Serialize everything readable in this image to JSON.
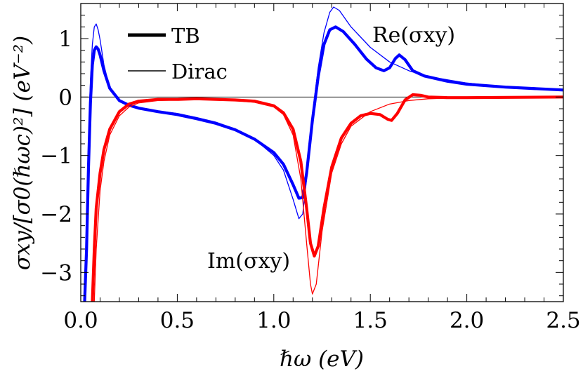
{
  "chart_data": {
    "type": "line",
    "xlabel": "ℏω (eV)",
    "ylabel": "σxy/[σ0(ℏωc)²] (eV⁻²)",
    "xlim": [
      0,
      2.5
    ],
    "ylim": [
      -3.5,
      1.6
    ],
    "x_ticks": [
      0.0,
      0.5,
      1.0,
      1.5,
      2.0,
      2.5
    ],
    "x_tick_labels": [
      "0.0",
      "0.5",
      "1.0",
      "1.5",
      "2.0",
      "2.5"
    ],
    "y_ticks": [
      -3,
      -2,
      -1,
      0,
      1
    ],
    "y_tick_labels": [
      "−3",
      "−2",
      "−1",
      "0",
      "1"
    ],
    "grid": false,
    "zero_line": true,
    "legend": {
      "placement": "top-left",
      "entries": [
        {
          "label": "TB",
          "style": "thick"
        },
        {
          "label": "Dirac",
          "style": "thin"
        }
      ]
    },
    "annotations": [
      {
        "text": "Re(σxy)",
        "x": 1.68,
        "y": 1.22
      },
      {
        "text": "Im(σxy)",
        "x": 1.04,
        "y": -3.05
      }
    ],
    "colors": {
      "re": "#0000ff",
      "im": "#ff0000"
    },
    "series": [
      {
        "component": "Re",
        "model": "TB",
        "color": "#0000ff",
        "style": "thick",
        "points": [
          [
            0.02,
            -3.5
          ],
          [
            0.03,
            -2.6
          ],
          [
            0.04,
            -1.2
          ],
          [
            0.05,
            -0.1
          ],
          [
            0.06,
            0.55
          ],
          [
            0.07,
            0.8
          ],
          [
            0.08,
            0.86
          ],
          [
            0.09,
            0.82
          ],
          [
            0.1,
            0.72
          ],
          [
            0.12,
            0.45
          ],
          [
            0.15,
            0.15
          ],
          [
            0.2,
            -0.06
          ],
          [
            0.25,
            -0.14
          ],
          [
            0.3,
            -0.19
          ],
          [
            0.4,
            -0.25
          ],
          [
            0.5,
            -0.3
          ],
          [
            0.6,
            -0.37
          ],
          [
            0.7,
            -0.45
          ],
          [
            0.8,
            -0.56
          ],
          [
            0.9,
            -0.72
          ],
          [
            1.0,
            -0.95
          ],
          [
            1.05,
            -1.15
          ],
          [
            1.1,
            -1.5
          ],
          [
            1.13,
            -1.73
          ],
          [
            1.15,
            -1.72
          ],
          [
            1.17,
            -1.3
          ],
          [
            1.2,
            -0.4
          ],
          [
            1.23,
            0.35
          ],
          [
            1.26,
            0.9
          ],
          [
            1.29,
            1.15
          ],
          [
            1.32,
            1.2
          ],
          [
            1.36,
            1.12
          ],
          [
            1.42,
            0.9
          ],
          [
            1.48,
            0.65
          ],
          [
            1.53,
            0.5
          ],
          [
            1.57,
            0.45
          ],
          [
            1.6,
            0.5
          ],
          [
            1.63,
            0.66
          ],
          [
            1.65,
            0.72
          ],
          [
            1.68,
            0.64
          ],
          [
            1.72,
            0.45
          ],
          [
            1.78,
            0.36
          ],
          [
            1.9,
            0.27
          ],
          [
            2.0,
            0.22
          ],
          [
            2.2,
            0.17
          ],
          [
            2.5,
            0.12
          ]
        ]
      },
      {
        "component": "Re",
        "model": "Dirac",
        "color": "#0000ff",
        "style": "thin",
        "points": [
          [
            0.02,
            -3.5
          ],
          [
            0.03,
            -2.2
          ],
          [
            0.04,
            -0.8
          ],
          [
            0.05,
            0.3
          ],
          [
            0.06,
            0.9
          ],
          [
            0.07,
            1.2
          ],
          [
            0.08,
            1.25
          ],
          [
            0.09,
            1.15
          ],
          [
            0.1,
            0.98
          ],
          [
            0.12,
            0.55
          ],
          [
            0.15,
            0.15
          ],
          [
            0.2,
            -0.08
          ],
          [
            0.25,
            -0.15
          ],
          [
            0.3,
            -0.18
          ],
          [
            0.4,
            -0.24
          ],
          [
            0.5,
            -0.28
          ],
          [
            0.6,
            -0.35
          ],
          [
            0.7,
            -0.43
          ],
          [
            0.8,
            -0.55
          ],
          [
            0.9,
            -0.72
          ],
          [
            1.0,
            -1.0
          ],
          [
            1.05,
            -1.25
          ],
          [
            1.1,
            -1.75
          ],
          [
            1.13,
            -2.08
          ],
          [
            1.15,
            -2.0
          ],
          [
            1.17,
            -1.4
          ],
          [
            1.2,
            -0.3
          ],
          [
            1.23,
            0.5
          ],
          [
            1.26,
            1.1
          ],
          [
            1.29,
            1.45
          ],
          [
            1.31,
            1.54
          ],
          [
            1.34,
            1.48
          ],
          [
            1.4,
            1.2
          ],
          [
            1.5,
            0.85
          ],
          [
            1.6,
            0.6
          ],
          [
            1.7,
            0.45
          ],
          [
            1.8,
            0.35
          ],
          [
            2.0,
            0.24
          ],
          [
            2.2,
            0.17
          ],
          [
            2.5,
            0.12
          ]
        ]
      },
      {
        "component": "Im",
        "model": "TB",
        "color": "#ff0000",
        "style": "thick",
        "points": [
          [
            0.06,
            -3.5
          ],
          [
            0.07,
            -2.6
          ],
          [
            0.08,
            -1.9
          ],
          [
            0.1,
            -1.3
          ],
          [
            0.12,
            -0.9
          ],
          [
            0.15,
            -0.55
          ],
          [
            0.2,
            -0.25
          ],
          [
            0.25,
            -0.12
          ],
          [
            0.3,
            -0.07
          ],
          [
            0.4,
            -0.04
          ],
          [
            0.5,
            -0.04
          ],
          [
            0.6,
            -0.03
          ],
          [
            0.7,
            -0.04
          ],
          [
            0.8,
            -0.05
          ],
          [
            0.9,
            -0.07
          ],
          [
            1.0,
            -0.15
          ],
          [
            1.05,
            -0.27
          ],
          [
            1.1,
            -0.55
          ],
          [
            1.14,
            -1.1
          ],
          [
            1.17,
            -1.9
          ],
          [
            1.19,
            -2.5
          ],
          [
            1.21,
            -2.72
          ],
          [
            1.23,
            -2.55
          ],
          [
            1.26,
            -1.9
          ],
          [
            1.3,
            -1.2
          ],
          [
            1.35,
            -0.7
          ],
          [
            1.4,
            -0.45
          ],
          [
            1.45,
            -0.32
          ],
          [
            1.5,
            -0.28
          ],
          [
            1.55,
            -0.3
          ],
          [
            1.59,
            -0.38
          ],
          [
            1.61,
            -0.4
          ],
          [
            1.64,
            -0.28
          ],
          [
            1.68,
            -0.05
          ],
          [
            1.72,
            0.04
          ],
          [
            1.76,
            0.03
          ],
          [
            1.8,
            0.0
          ],
          [
            1.9,
            -0.01
          ],
          [
            2.0,
            -0.01
          ],
          [
            2.5,
            0.0
          ]
        ]
      },
      {
        "component": "Im",
        "model": "Dirac",
        "color": "#ff0000",
        "style": "thin",
        "points": [
          [
            0.07,
            -3.5
          ],
          [
            0.08,
            -2.6
          ],
          [
            0.1,
            -1.6
          ],
          [
            0.12,
            -1.1
          ],
          [
            0.15,
            -0.65
          ],
          [
            0.2,
            -0.32
          ],
          [
            0.25,
            -0.17
          ],
          [
            0.3,
            -0.1
          ],
          [
            0.4,
            -0.06
          ],
          [
            0.5,
            -0.05
          ],
          [
            0.6,
            -0.04
          ],
          [
            0.7,
            -0.05
          ],
          [
            0.8,
            -0.06
          ],
          [
            0.9,
            -0.09
          ],
          [
            1.0,
            -0.17
          ],
          [
            1.05,
            -0.3
          ],
          [
            1.1,
            -0.65
          ],
          [
            1.14,
            -1.4
          ],
          [
            1.17,
            -2.5
          ],
          [
            1.19,
            -3.2
          ],
          [
            1.2,
            -3.37
          ],
          [
            1.22,
            -3.2
          ],
          [
            1.25,
            -2.3
          ],
          [
            1.3,
            -1.3
          ],
          [
            1.35,
            -0.8
          ],
          [
            1.4,
            -0.5
          ],
          [
            1.5,
            -0.25
          ],
          [
            1.6,
            -0.12
          ],
          [
            1.7,
            -0.06
          ],
          [
            1.8,
            -0.03
          ],
          [
            2.0,
            -0.01
          ],
          [
            2.5,
            0.0
          ]
        ]
      }
    ]
  }
}
